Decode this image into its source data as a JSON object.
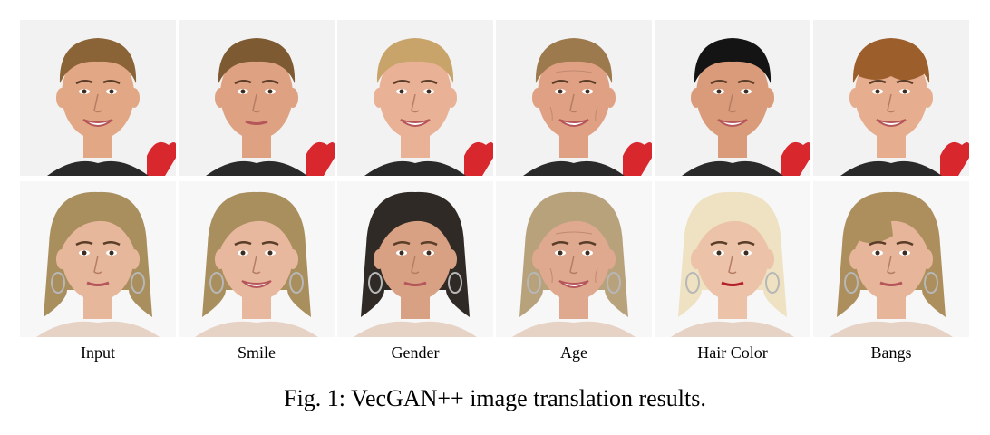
{
  "figure": {
    "column_labels": [
      "Input",
      "Smile",
      "Gender",
      "Age",
      "Hair Color",
      "Bangs"
    ],
    "caption": "Fig. 1: VecGAN++ image translation results.",
    "rows": [
      {
        "subject": "male-face",
        "cells": [
          {
            "edit": "input",
            "hair": "#8a6336",
            "skin": "#e2a784",
            "bg": "#f2f2f2",
            "smile": true
          },
          {
            "edit": "smile",
            "hair": "#7d5a32",
            "skin": "#dea182",
            "bg": "#f2f2f2",
            "smile": false
          },
          {
            "edit": "gender",
            "hair": "#c9a46a",
            "skin": "#e9b195",
            "bg": "#f2f2f2",
            "smile": true
          },
          {
            "edit": "age",
            "hair": "#9d7a4e",
            "skin": "#e0a083",
            "bg": "#f2f2f2",
            "smile": true
          },
          {
            "edit": "hair-color",
            "hair": "#141414",
            "skin": "#d99b7a",
            "bg": "#f2f2f2",
            "smile": true
          },
          {
            "edit": "bangs",
            "hair": "#9c5f2c",
            "skin": "#e6ad8e",
            "bg": "#f2f2f2",
            "smile": true
          }
        ]
      },
      {
        "subject": "female-face",
        "cells": [
          {
            "edit": "input",
            "hair": "#a98e5e",
            "skin": "#e7b79c",
            "bg": "#f7f7f7",
            "smile": false
          },
          {
            "edit": "smile",
            "hair": "#a98e5e",
            "skin": "#e8b89e",
            "bg": "#f7f7f7",
            "smile": true
          },
          {
            "edit": "gender",
            "hair": "#2f2a25",
            "skin": "#d9a183",
            "bg": "#f7f7f7",
            "smile": false
          },
          {
            "edit": "age",
            "hair": "#b8a27c",
            "skin": "#dfa98f",
            "bg": "#f7f7f7",
            "smile": true
          },
          {
            "edit": "hair-color",
            "hair": "#efe2c2",
            "skin": "#ecc2a8",
            "bg": "#f7f7f7",
            "smile": false
          },
          {
            "edit": "bangs",
            "hair": "#ad8f5d",
            "skin": "#e6b59a",
            "bg": "#f7f7f7",
            "smile": false
          }
        ]
      }
    ]
  }
}
